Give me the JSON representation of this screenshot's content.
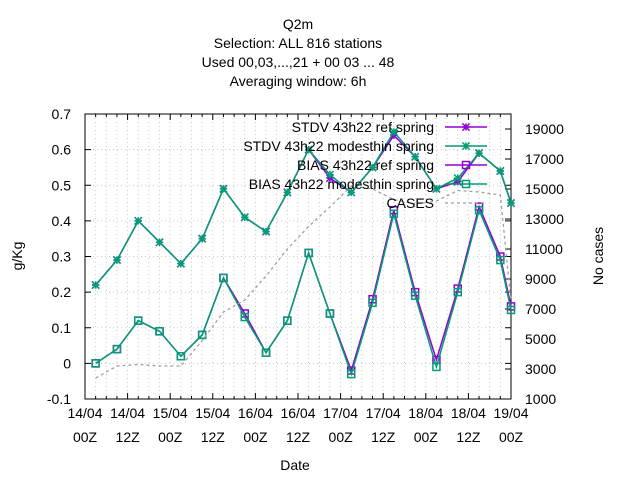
{
  "chart_data": {
    "type": "line",
    "title_lines": [
      "Q2m",
      "Selection: ALL    816 stations",
      "Used  00,03,...,21  + 00 03 ... 48",
      "Averaging window:  6h"
    ],
    "xlabel": "Date",
    "ylabel": "g/Kg",
    "y2label": "No cases",
    "ylim": [
      -0.1,
      0.7
    ],
    "y2lim": [
      1000,
      20000
    ],
    "yticks": [
      "-0.1",
      "0",
      "0.1",
      "0.2",
      "0.3",
      "0.4",
      "0.5",
      "0.6",
      "0.7"
    ],
    "y2ticks": [
      "1000",
      "3000",
      "5000",
      "7000",
      "9000",
      "11000",
      "13000",
      "15000",
      "17000",
      "19000"
    ],
    "xticks": [
      {
        "top": "14/04",
        "bottom": "00Z"
      },
      {
        "top": "14/04",
        "bottom": "12Z"
      },
      {
        "top": "15/04",
        "bottom": "00Z"
      },
      {
        "top": "15/04",
        "bottom": "12Z"
      },
      {
        "top": "16/04",
        "bottom": "00Z"
      },
      {
        "top": "16/04",
        "bottom": "12Z"
      },
      {
        "top": "17/04",
        "bottom": "00Z"
      },
      {
        "top": "17/04",
        "bottom": "12Z"
      },
      {
        "top": "18/04",
        "bottom": "00Z"
      },
      {
        "top": "18/04",
        "bottom": "12Z"
      },
      {
        "top": "19/04",
        "bottom": "00Z"
      }
    ],
    "x_hours": [
      0,
      3,
      6,
      9,
      12,
      15,
      18,
      21,
      24,
      27,
      30,
      33,
      36,
      39,
      42,
      45,
      48,
      51,
      54,
      57,
      60,
      63,
      66,
      69,
      72,
      75,
      78,
      81,
      84,
      87,
      90,
      93,
      96,
      99,
      102,
      105,
      108,
      111,
      114,
      117,
      120
    ],
    "series": [
      {
        "name": "STDV 43h22 ref spring",
        "axis": "y",
        "color": "#9400d3",
        "marker": "star",
        "hours": [
          3,
          9,
          15,
          21,
          27,
          33,
          39,
          45,
          51,
          57,
          63,
          69,
          75,
          81,
          87,
          93,
          99,
          105,
          111,
          117,
          120
        ],
        "values": [
          0.22,
          0.29,
          0.4,
          0.34,
          0.28,
          0.35,
          0.49,
          0.41,
          0.37,
          0.48,
          0.6,
          0.52,
          0.48,
          0.55,
          0.64,
          0.58,
          0.49,
          0.51,
          0.59,
          0.54,
          0.45
        ]
      },
      {
        "name": "STDV 43h22 modesthin spring",
        "axis": "y",
        "color": "#009e73",
        "marker": "star",
        "hours": [
          3,
          9,
          15,
          21,
          27,
          33,
          39,
          45,
          51,
          57,
          63,
          69,
          75,
          81,
          87,
          93,
          99,
          105,
          111,
          117,
          120
        ],
        "values": [
          0.22,
          0.29,
          0.4,
          0.34,
          0.28,
          0.35,
          0.49,
          0.41,
          0.37,
          0.48,
          0.6,
          0.53,
          0.48,
          0.55,
          0.65,
          0.58,
          0.49,
          0.52,
          0.59,
          0.54,
          0.45
        ]
      },
      {
        "name": "BIAS 43h22 ref spring",
        "axis": "y",
        "color": "#9400d3",
        "marker": "square",
        "hours": [
          3,
          9,
          15,
          21,
          27,
          33,
          39,
          45,
          51,
          57,
          63,
          69,
          75,
          81,
          87,
          93,
          99,
          105,
          111,
          117,
          120
        ],
        "values": [
          0.0,
          0.04,
          0.12,
          0.09,
          0.02,
          0.08,
          0.24,
          0.14,
          0.03,
          0.12,
          0.31,
          0.14,
          -0.02,
          0.18,
          0.43,
          0.2,
          0.01,
          0.21,
          0.44,
          0.3,
          0.16
        ]
      },
      {
        "name": "BIAS 43h22 modesthin spring",
        "axis": "y",
        "color": "#009e73",
        "marker": "square",
        "hours": [
          3,
          9,
          15,
          21,
          27,
          33,
          39,
          45,
          51,
          57,
          63,
          69,
          75,
          81,
          87,
          93,
          99,
          105,
          111,
          117,
          120
        ],
        "values": [
          0.0,
          0.04,
          0.12,
          0.09,
          0.02,
          0.08,
          0.24,
          0.13,
          0.03,
          0.12,
          0.31,
          0.14,
          -0.03,
          0.17,
          0.42,
          0.19,
          -0.01,
          0.2,
          0.43,
          0.29,
          0.15
        ]
      },
      {
        "name": "CASES",
        "axis": "y2",
        "color": "#a0a0a0",
        "marker": "none",
        "dash": true,
        "hours": [
          3,
          9,
          15,
          21,
          27,
          33,
          39,
          45,
          51,
          57,
          63,
          69,
          75,
          81,
          87,
          93,
          99,
          105,
          111,
          117,
          120
        ],
        "values": [
          2400,
          3200,
          3300,
          3200,
          3200,
          4900,
          6800,
          7600,
          9200,
          11000,
          12500,
          13800,
          15200,
          15000,
          14300,
          14000,
          14200,
          14900,
          14800,
          14600,
          7500
        ]
      }
    ],
    "legend": {
      "position": "top-right"
    }
  }
}
